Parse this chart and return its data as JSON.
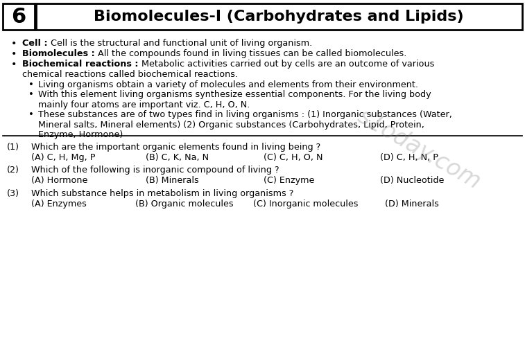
{
  "title_number": "6",
  "title_text": "Biomolecules-I (Carbohydrates and Lipids)",
  "bg_color": "#ffffff",
  "bullet1_bold": "Cell :",
  "bullet1_normal": " Cell is the structural and functional unit of living organism.",
  "bullet2_bold": "Biomolecules :",
  "bullet2_normal": " All the compounds found in living tissues can be called biomolecules.",
  "bullet3_bold": "Biochemical reactions :",
  "bullet3_normal": " Metabolic activities carried out by cells are an outcome of various",
  "bullet3_line2": "chemical reactions called biochemical reactions.",
  "sub1": "Living organisms obtain a variety of molecules and elements from their environment.",
  "sub2a": "With this element living organisms synthesize essential components. For the living body",
  "sub2b": "mainly four atoms are important viz. C, H, O, N.",
  "sub3a": "These substances are of two types find in living organisms : (1) Inorganic substances (Water,",
  "sub3b": "Mineral salts, Mineral elements) (2) Organic substances (Carbohydrates, Lipid, Protein,",
  "sub3c": "Enzyme, Hormone)",
  "q1": "Which are the important organic elements found in living being ?",
  "q1_opts": [
    "(A) C, H, Mg, P",
    "(B) C, K, Na, N",
    "(C) C, H, O, N",
    "(D) C, H, N, P"
  ],
  "q2": "Which of the following is inorganic compound of living ?",
  "q2_opts": [
    "(A) Hormone",
    "(B) Minerals",
    "(C) Enzyme",
    "(D) Nucleotide"
  ],
  "q3": "Which substance helps in metabolism in living organisms ?",
  "q3_opts": [
    "(A) Enzymes",
    "(B) Organic molecules",
    "(C) Inorganic molecules",
    "(D) Minerals"
  ],
  "watermark": "s1oday.com",
  "fs_title": 16,
  "fs_body": 9.2,
  "fs_num": 22
}
